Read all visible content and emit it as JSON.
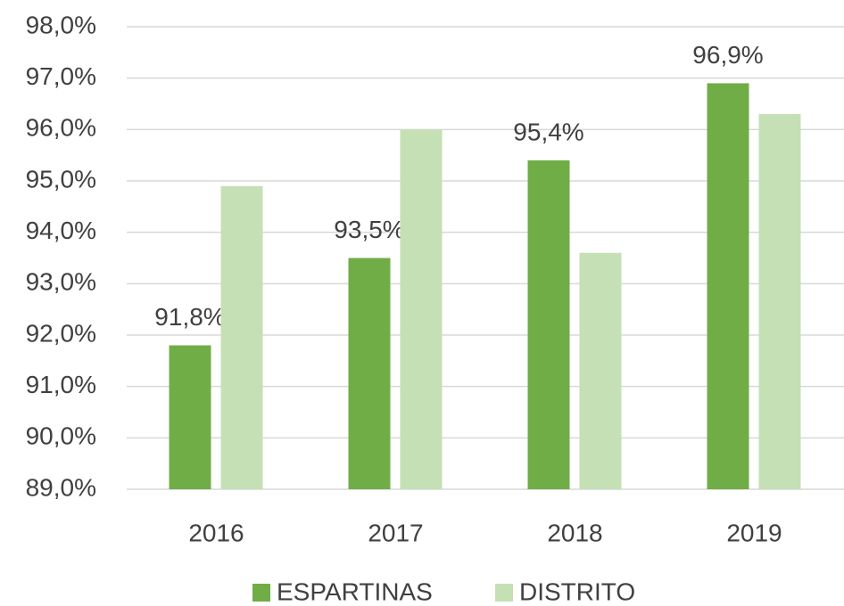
{
  "chart_data": {
    "type": "bar",
    "categories": [
      "2016",
      "2017",
      "2018",
      "2019"
    ],
    "series": [
      {
        "name": "ESPARTINAS",
        "color": "#70ad47",
        "values": [
          91.8,
          93.5,
          95.4,
          96.9
        ],
        "value_labels": [
          "91,8%",
          "93,5%",
          "95,4%",
          "96,9%"
        ]
      },
      {
        "name": "DISTRITO",
        "color": "#c5e0b4",
        "values": [
          94.9,
          96.0,
          93.6,
          96.3
        ]
      }
    ],
    "ylim": [
      89,
      98
    ],
    "yticks": [
      {
        "value": 89,
        "label": "89,0%"
      },
      {
        "value": 90,
        "label": "90,0%"
      },
      {
        "value": 91,
        "label": "91,0%"
      },
      {
        "value": 92,
        "label": "92,0%"
      },
      {
        "value": 93,
        "label": "93,0%"
      },
      {
        "value": 94,
        "label": "94,0%"
      },
      {
        "value": 95,
        "label": "95,0%"
      },
      {
        "value": 96,
        "label": "96,0%"
      },
      {
        "value": 97,
        "label": "97,0%"
      },
      {
        "value": 98,
        "label": "98,0%"
      }
    ],
    "grid": true,
    "legend": "bottom"
  }
}
